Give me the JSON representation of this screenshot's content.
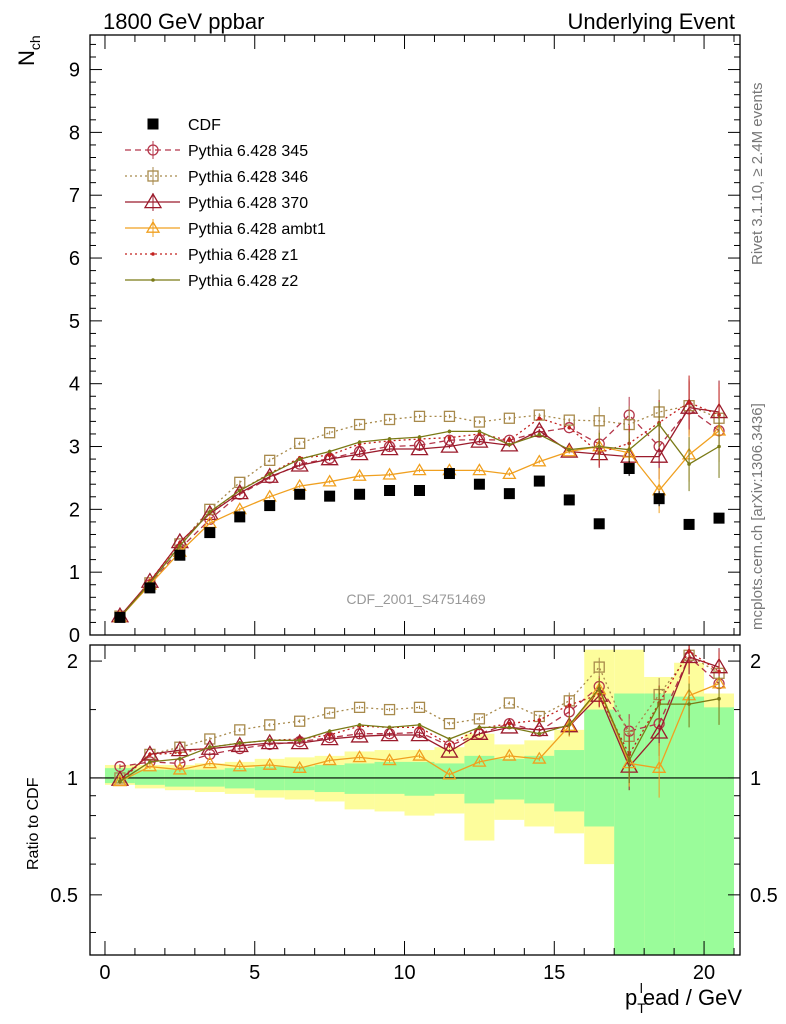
{
  "header": {
    "left": "1800 GeV ppbar",
    "right": "Underlying Event"
  },
  "side_labels": {
    "rivet": "Rivet 3.1.10, ≥ 2.4M events",
    "mcplots": "mcplots.cern.ch [arXiv:1306.3436]"
  },
  "watermark": "CDF_2001_S4751469",
  "colors": {
    "cdf": "#000000",
    "p345": "#b4364a",
    "p346": "#a88a4c",
    "p370": "#9b1b2c",
    "ambt1": "#f0a020",
    "z1": "#c2201e",
    "z2": "#7a7a16",
    "band_green": "#9afc9a",
    "band_yellow": "#fdfd9c"
  },
  "chart_data": [
    {
      "type": "scatter",
      "ylabel": "N",
      "ylabel_sub": "ch",
      "xlim": [
        -0.5,
        21.2
      ],
      "ylim": [
        0,
        9.55
      ],
      "yticks": [
        0,
        1,
        2,
        3,
        4,
        5,
        6,
        7,
        8,
        9
      ],
      "legend_position": "top-left",
      "x": [
        0.5,
        1.5,
        2.5,
        3.5,
        4.5,
        5.5,
        6.5,
        7.5,
        8.5,
        9.5,
        10.5,
        11.5,
        12.5,
        13.5,
        14.5,
        15.5,
        16.5,
        17.5,
        18.5,
        19.5,
        20.5
      ],
      "series": [
        {
          "key": "cdf",
          "name": "CDF",
          "marker": "filled-square",
          "values": [
            0.28,
            0.75,
            1.27,
            1.63,
            1.88,
            2.06,
            2.24,
            2.21,
            2.24,
            2.3,
            2.3,
            2.57,
            2.4,
            2.25,
            2.45,
            2.15,
            1.77,
            2.65,
            2.17,
            1.76,
            1.86
          ]
        },
        {
          "key": "p345",
          "name": "Pythia 6.428 345",
          "marker": "open-circle",
          "line": "dashed",
          "values": [
            0.3,
            0.8,
            1.37,
            1.84,
            2.24,
            2.5,
            2.72,
            2.81,
            2.92,
            3.0,
            3.02,
            3.1,
            3.11,
            3.1,
            3.23,
            3.3,
            3.04,
            3.5,
            3.0,
            3.6,
            3.25
          ]
        },
        {
          "key": "p346",
          "name": "Pythia 6.428 346",
          "marker": "open-square",
          "line": "dotted",
          "values": [
            0.3,
            0.83,
            1.45,
            2.0,
            2.43,
            2.78,
            3.05,
            3.22,
            3.35,
            3.43,
            3.48,
            3.48,
            3.39,
            3.45,
            3.5,
            3.42,
            3.41,
            3.35,
            3.55,
            3.65,
            3.45
          ]
        },
        {
          "key": "p370",
          "name": "Pythia 6.428 370",
          "marker": "open-triangle",
          "line": "solid",
          "values": [
            0.3,
            0.85,
            1.48,
            1.93,
            2.26,
            2.52,
            2.7,
            2.8,
            2.88,
            2.96,
            2.96,
            3.0,
            3.08,
            3.02,
            3.25,
            2.92,
            2.88,
            2.84,
            2.84,
            3.62,
            3.55
          ]
        },
        {
          "key": "ambt1",
          "name": "Pythia 6.428 ambt1",
          "marker": "open-triangle",
          "line": "solid",
          "values": [
            0.28,
            0.8,
            1.32,
            1.78,
            2.0,
            2.2,
            2.37,
            2.44,
            2.53,
            2.55,
            2.62,
            2.62,
            2.62,
            2.56,
            2.76,
            2.92,
            3.0,
            2.9,
            2.3,
            2.87,
            3.25
          ]
        },
        {
          "key": "z1",
          "name": "Pythia 6.428 z1",
          "marker": "dot",
          "line": "dotted",
          "values": [
            0.28,
            0.86,
            1.47,
            1.95,
            2.3,
            2.57,
            2.82,
            2.86,
            3.04,
            3.09,
            3.12,
            3.14,
            3.2,
            3.1,
            3.45,
            3.3,
            2.9,
            3.05,
            3.38,
            3.7,
            3.5
          ]
        },
        {
          "key": "z2",
          "name": "Pythia 6.428 z2",
          "marker": "dot",
          "line": "solid",
          "values": [
            0.28,
            0.83,
            1.42,
            1.96,
            2.3,
            2.56,
            2.8,
            2.92,
            3.07,
            3.12,
            3.15,
            3.24,
            3.24,
            3.03,
            3.19,
            2.95,
            3.0,
            2.95,
            3.35,
            2.72,
            3.0
          ]
        }
      ]
    },
    {
      "type": "scatter",
      "xlabel": "p_T^lead / GeV",
      "xlabel_parts": {
        "p": "p",
        "sub": "T",
        "sup": "l",
        "rest": "ead / GeV"
      },
      "ylabel": "Ratio to CDF",
      "xlim": [
        -0.5,
        21.2
      ],
      "ylim": [
        0.35,
        2.2
      ],
      "log_y": true,
      "yticks": [
        0.5,
        1,
        2
      ],
      "xticks": [
        0,
        5,
        10,
        15,
        20
      ],
      "reference_line": 1,
      "x": [
        0.5,
        1.5,
        2.5,
        3.5,
        4.5,
        5.5,
        6.5,
        7.5,
        8.5,
        9.5,
        10.5,
        11.5,
        12.5,
        13.5,
        14.5,
        15.5,
        16.5,
        17.5,
        18.5,
        19.5,
        20.5
      ],
      "bands": {
        "green": [
          [
            0.97,
            1.06
          ],
          [
            0.96,
            1.05
          ],
          [
            0.95,
            1.05
          ],
          [
            0.95,
            1.05
          ],
          [
            0.94,
            1.06
          ],
          [
            0.93,
            1.07
          ],
          [
            0.93,
            1.07
          ],
          [
            0.92,
            1.08
          ],
          [
            0.91,
            1.09
          ],
          [
            0.91,
            1.1
          ],
          [
            0.9,
            1.1
          ],
          [
            0.91,
            1.09
          ],
          [
            0.86,
            1.14
          ],
          [
            0.88,
            1.12
          ],
          [
            0.86,
            1.14
          ],
          [
            0.82,
            1.18
          ],
          [
            0.75,
            1.5
          ],
          [
            0.35,
            1.65
          ],
          [
            0.35,
            1.65
          ],
          [
            0.35,
            1.62
          ],
          [
            0.35,
            1.52
          ]
        ],
        "yellow": [
          [
            0.96,
            1.08
          ],
          [
            0.94,
            1.08
          ],
          [
            0.93,
            1.08
          ],
          [
            0.92,
            1.09
          ],
          [
            0.91,
            1.1
          ],
          [
            0.89,
            1.12
          ],
          [
            0.88,
            1.13
          ],
          [
            0.87,
            1.14
          ],
          [
            0.83,
            1.17
          ],
          [
            0.82,
            1.18
          ],
          [
            0.8,
            1.18
          ],
          [
            0.81,
            1.2
          ],
          [
            0.69,
            1.3
          ],
          [
            0.78,
            1.22
          ],
          [
            0.75,
            1.25
          ],
          [
            0.72,
            1.33
          ],
          [
            0.6,
            2.14
          ],
          [
            0.35,
            2.14
          ],
          [
            0.35,
            1.82
          ],
          [
            0.35,
            1.98
          ],
          [
            0.35,
            1.65
          ]
        ]
      },
      "series": [
        {
          "key": "p345",
          "name": "Pythia 6.428 345",
          "values": [
            1.07,
            1.1,
            1.09,
            1.15,
            1.19,
            1.22,
            1.24,
            1.27,
            1.3,
            1.3,
            1.31,
            1.21,
            1.3,
            1.38,
            1.32,
            1.48,
            1.72,
            1.32,
            1.38,
            2.05,
            1.75
          ]
        },
        {
          "key": "p346",
          "name": "Pythia 6.428 346",
          "values": [
            1.0,
            1.15,
            1.2,
            1.26,
            1.33,
            1.37,
            1.4,
            1.47,
            1.52,
            1.5,
            1.52,
            1.38,
            1.42,
            1.56,
            1.44,
            1.58,
            1.93,
            1.28,
            1.64,
            2.07,
            1.86
          ]
        },
        {
          "key": "p370",
          "name": "Pythia 6.428 370",
          "values": [
            0.99,
            1.15,
            1.18,
            1.19,
            1.21,
            1.23,
            1.23,
            1.26,
            1.28,
            1.29,
            1.29,
            1.17,
            1.3,
            1.35,
            1.33,
            1.36,
            1.63,
            1.07,
            1.31,
            2.05,
            1.93
          ]
        },
        {
          "key": "ambt1",
          "name": "Pythia 6.428 ambt1",
          "values": [
            0.98,
            1.07,
            1.05,
            1.09,
            1.07,
            1.08,
            1.06,
            1.11,
            1.13,
            1.11,
            1.14,
            1.02,
            1.1,
            1.14,
            1.12,
            1.36,
            1.69,
            1.09,
            1.06,
            1.63,
            1.75
          ]
        },
        {
          "key": "z1",
          "name": "Pythia 6.428 z1",
          "values": [
            0.98,
            1.15,
            1.16,
            1.2,
            1.23,
            1.25,
            1.26,
            1.29,
            1.36,
            1.35,
            1.35,
            1.22,
            1.34,
            1.38,
            1.41,
            1.54,
            1.64,
            1.15,
            1.56,
            2.12,
            1.88
          ]
        },
        {
          "key": "z2",
          "name": "Pythia 6.428 z2",
          "values": [
            0.98,
            1.1,
            1.12,
            1.2,
            1.23,
            1.25,
            1.25,
            1.32,
            1.37,
            1.35,
            1.37,
            1.26,
            1.35,
            1.35,
            1.3,
            1.37,
            1.7,
            1.11,
            1.55,
            1.55,
            1.6
          ]
        }
      ]
    }
  ]
}
